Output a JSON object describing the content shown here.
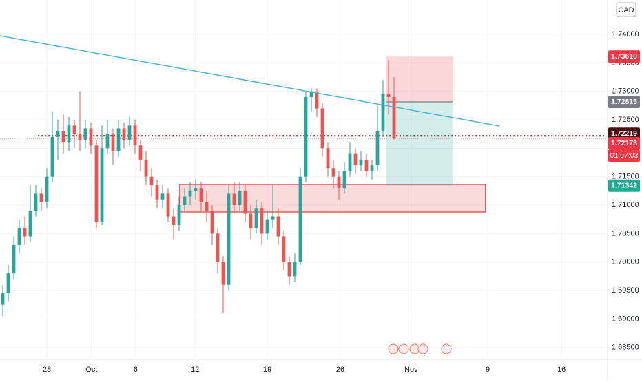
{
  "chart_data": {
    "type": "candlestick",
    "currency": "CAD",
    "up_color": "#26a69a",
    "down_color": "#ef5350",
    "open": [
      1.6925,
      1.6945,
      1.698,
      1.703,
      1.706,
      1.7045,
      1.709,
      1.712,
      1.7105,
      1.715,
      1.722,
      1.723,
      1.721,
      1.724,
      1.7225,
      1.7215,
      1.7235,
      1.7205,
      1.707,
      1.72,
      1.7225,
      1.7195,
      1.7235,
      1.7215,
      1.724,
      1.7205,
      1.718,
      1.715,
      1.7135,
      1.711,
      1.712,
      1.708,
      1.7065,
      1.71,
      1.7115,
      1.7125,
      1.713,
      1.7105,
      1.709,
      1.705,
      1.7,
      1.696,
      1.712,
      1.71,
      1.7125,
      1.7085,
      1.706,
      1.7095,
      1.705,
      1.7075,
      1.708,
      1.7045,
      1.7,
      1.6975,
      1.7,
      1.715,
      1.729,
      1.73,
      1.727,
      1.72,
      1.7165,
      1.715,
      1.713,
      1.716,
      1.719,
      1.717,
      1.718,
      1.716,
      1.717,
      1.723,
      1.7295,
      1.729
    ],
    "high": [
      1.696,
      1.6995,
      1.7045,
      1.7075,
      1.708,
      1.7135,
      1.7135,
      1.713,
      1.7165,
      1.7265,
      1.725,
      1.726,
      1.7255,
      1.725,
      1.73,
      1.725,
      1.7245,
      1.7215,
      1.724,
      1.725,
      1.7235,
      1.725,
      1.7245,
      1.7255,
      1.725,
      1.7215,
      1.7195,
      1.7165,
      1.7145,
      1.7135,
      1.713,
      1.7095,
      1.7115,
      1.713,
      1.714,
      1.7145,
      1.714,
      1.7125,
      1.71,
      1.706,
      1.701,
      1.7135,
      1.714,
      1.714,
      1.7135,
      1.71,
      1.711,
      1.7105,
      1.709,
      1.7135,
      1.7095,
      1.7055,
      1.701,
      1.7015,
      1.7165,
      1.73,
      1.7305,
      1.7305,
      1.728,
      1.721,
      1.718,
      1.716,
      1.7175,
      1.721,
      1.72,
      1.7195,
      1.719,
      1.718,
      1.7275,
      1.732,
      1.7355,
      1.7325
    ],
    "low": [
      1.6905,
      1.693,
      1.697,
      1.7015,
      1.703,
      1.7035,
      1.708,
      1.709,
      1.7095,
      1.714,
      1.718,
      1.719,
      1.7195,
      1.72,
      1.7195,
      1.72,
      1.719,
      1.706,
      1.7065,
      1.719,
      1.717,
      1.7185,
      1.72,
      1.7205,
      1.719,
      1.716,
      1.7135,
      1.7115,
      1.7095,
      1.7095,
      1.707,
      1.704,
      1.7055,
      1.709,
      1.71,
      1.711,
      1.709,
      1.707,
      1.703,
      1.698,
      1.691,
      1.695,
      1.7085,
      1.709,
      1.707,
      1.704,
      1.705,
      1.703,
      1.704,
      1.706,
      1.703,
      1.6985,
      1.696,
      1.6965,
      1.6995,
      1.714,
      1.7265,
      1.7255,
      1.7185,
      1.715,
      1.713,
      1.711,
      1.712,
      1.715,
      1.7155,
      1.716,
      1.715,
      1.7145,
      1.716,
      1.722,
      1.726,
      1.7215
    ],
    "close": [
      1.6945,
      1.698,
      1.703,
      1.706,
      1.7045,
      1.709,
      1.712,
      1.7105,
      1.715,
      1.722,
      1.723,
      1.721,
      1.724,
      1.7225,
      1.7215,
      1.7235,
      1.7205,
      1.707,
      1.72,
      1.7225,
      1.7195,
      1.7235,
      1.7215,
      1.724,
      1.7205,
      1.718,
      1.715,
      1.7135,
      1.711,
      1.712,
      1.708,
      1.7065,
      1.71,
      1.7115,
      1.7125,
      1.713,
      1.7105,
      1.709,
      1.705,
      1.7,
      1.696,
      1.712,
      1.71,
      1.7125,
      1.7085,
      1.706,
      1.7095,
      1.705,
      1.7075,
      1.708,
      1.7045,
      1.7,
      1.6975,
      1.7,
      1.715,
      1.729,
      1.73,
      1.727,
      1.72,
      1.7165,
      1.715,
      1.713,
      1.716,
      1.719,
      1.717,
      1.718,
      1.716,
      1.717,
      1.723,
      1.7295,
      1.729,
      1.7217
    ],
    "xlim": [
      0,
      110
    ],
    "ylim": [
      1.68315,
      1.74605
    ],
    "xticks": [
      {
        "value": 8.5,
        "label": "28"
      },
      {
        "value": 16.6,
        "label": "Oct"
      },
      {
        "value": 24.6,
        "label": "6"
      },
      {
        "value": 35.4,
        "label": "12"
      },
      {
        "value": 48.5,
        "label": "19"
      },
      {
        "value": 61.75,
        "label": "26"
      },
      {
        "value": 74.6,
        "label": "Nov"
      },
      {
        "value": 88.5,
        "label": "9"
      },
      {
        "value": 101.9,
        "label": "16"
      }
    ],
    "yticks": [
      {
        "value": 1.685,
        "label": "1.68500"
      },
      {
        "value": 1.69,
        "label": "1.69000"
      },
      {
        "value": 1.695,
        "label": "1.69500"
      },
      {
        "value": 1.7,
        "label": "1.70000"
      },
      {
        "value": 1.705,
        "label": "1.70500"
      },
      {
        "value": 1.71,
        "label": "1.71000"
      },
      {
        "value": 1.715,
        "label": "1.71500"
      },
      {
        "value": 1.72,
        "label": "1.72000"
      },
      {
        "value": 1.725,
        "label": "1.72500"
      },
      {
        "value": 1.73,
        "label": "1.73000"
      },
      {
        "value": 1.735,
        "label": "1.73500"
      },
      {
        "value": 1.74,
        "label": "1.74000"
      }
    ],
    "trendline": {
      "x": [
        0,
        90.6
      ],
      "y": [
        1.73976,
        1.72391
      ],
      "color": "#4fb3d9"
    },
    "zone": {
      "x": [
        32.6,
        88.1
      ],
      "y": [
        1.70879,
        1.71363
      ],
      "color": "#e53935"
    },
    "position": {
      "x": [
        70,
        82.25
      ],
      "stop": 1.7361,
      "entry": 1.72815,
      "target": 1.71342
    },
    "level_line": {
      "x": 6.9,
      "value": 1.72219
    },
    "price_labels": [
      {
        "value": 1.7361,
        "label": "1.73610",
        "color": "#f23645"
      },
      {
        "value": 1.72815,
        "label": "1.72815",
        "color": "#787b86"
      },
      {
        "value": 1.72219,
        "label": "1.72219",
        "color": "#4a1010"
      },
      {
        "value": 1.72173,
        "label": "1.72173",
        "color": "#f23645"
      },
      {
        "value": 1.71342,
        "label": "1.71342",
        "color": "#22ab94"
      }
    ],
    "countdown": "01:07:03"
  }
}
